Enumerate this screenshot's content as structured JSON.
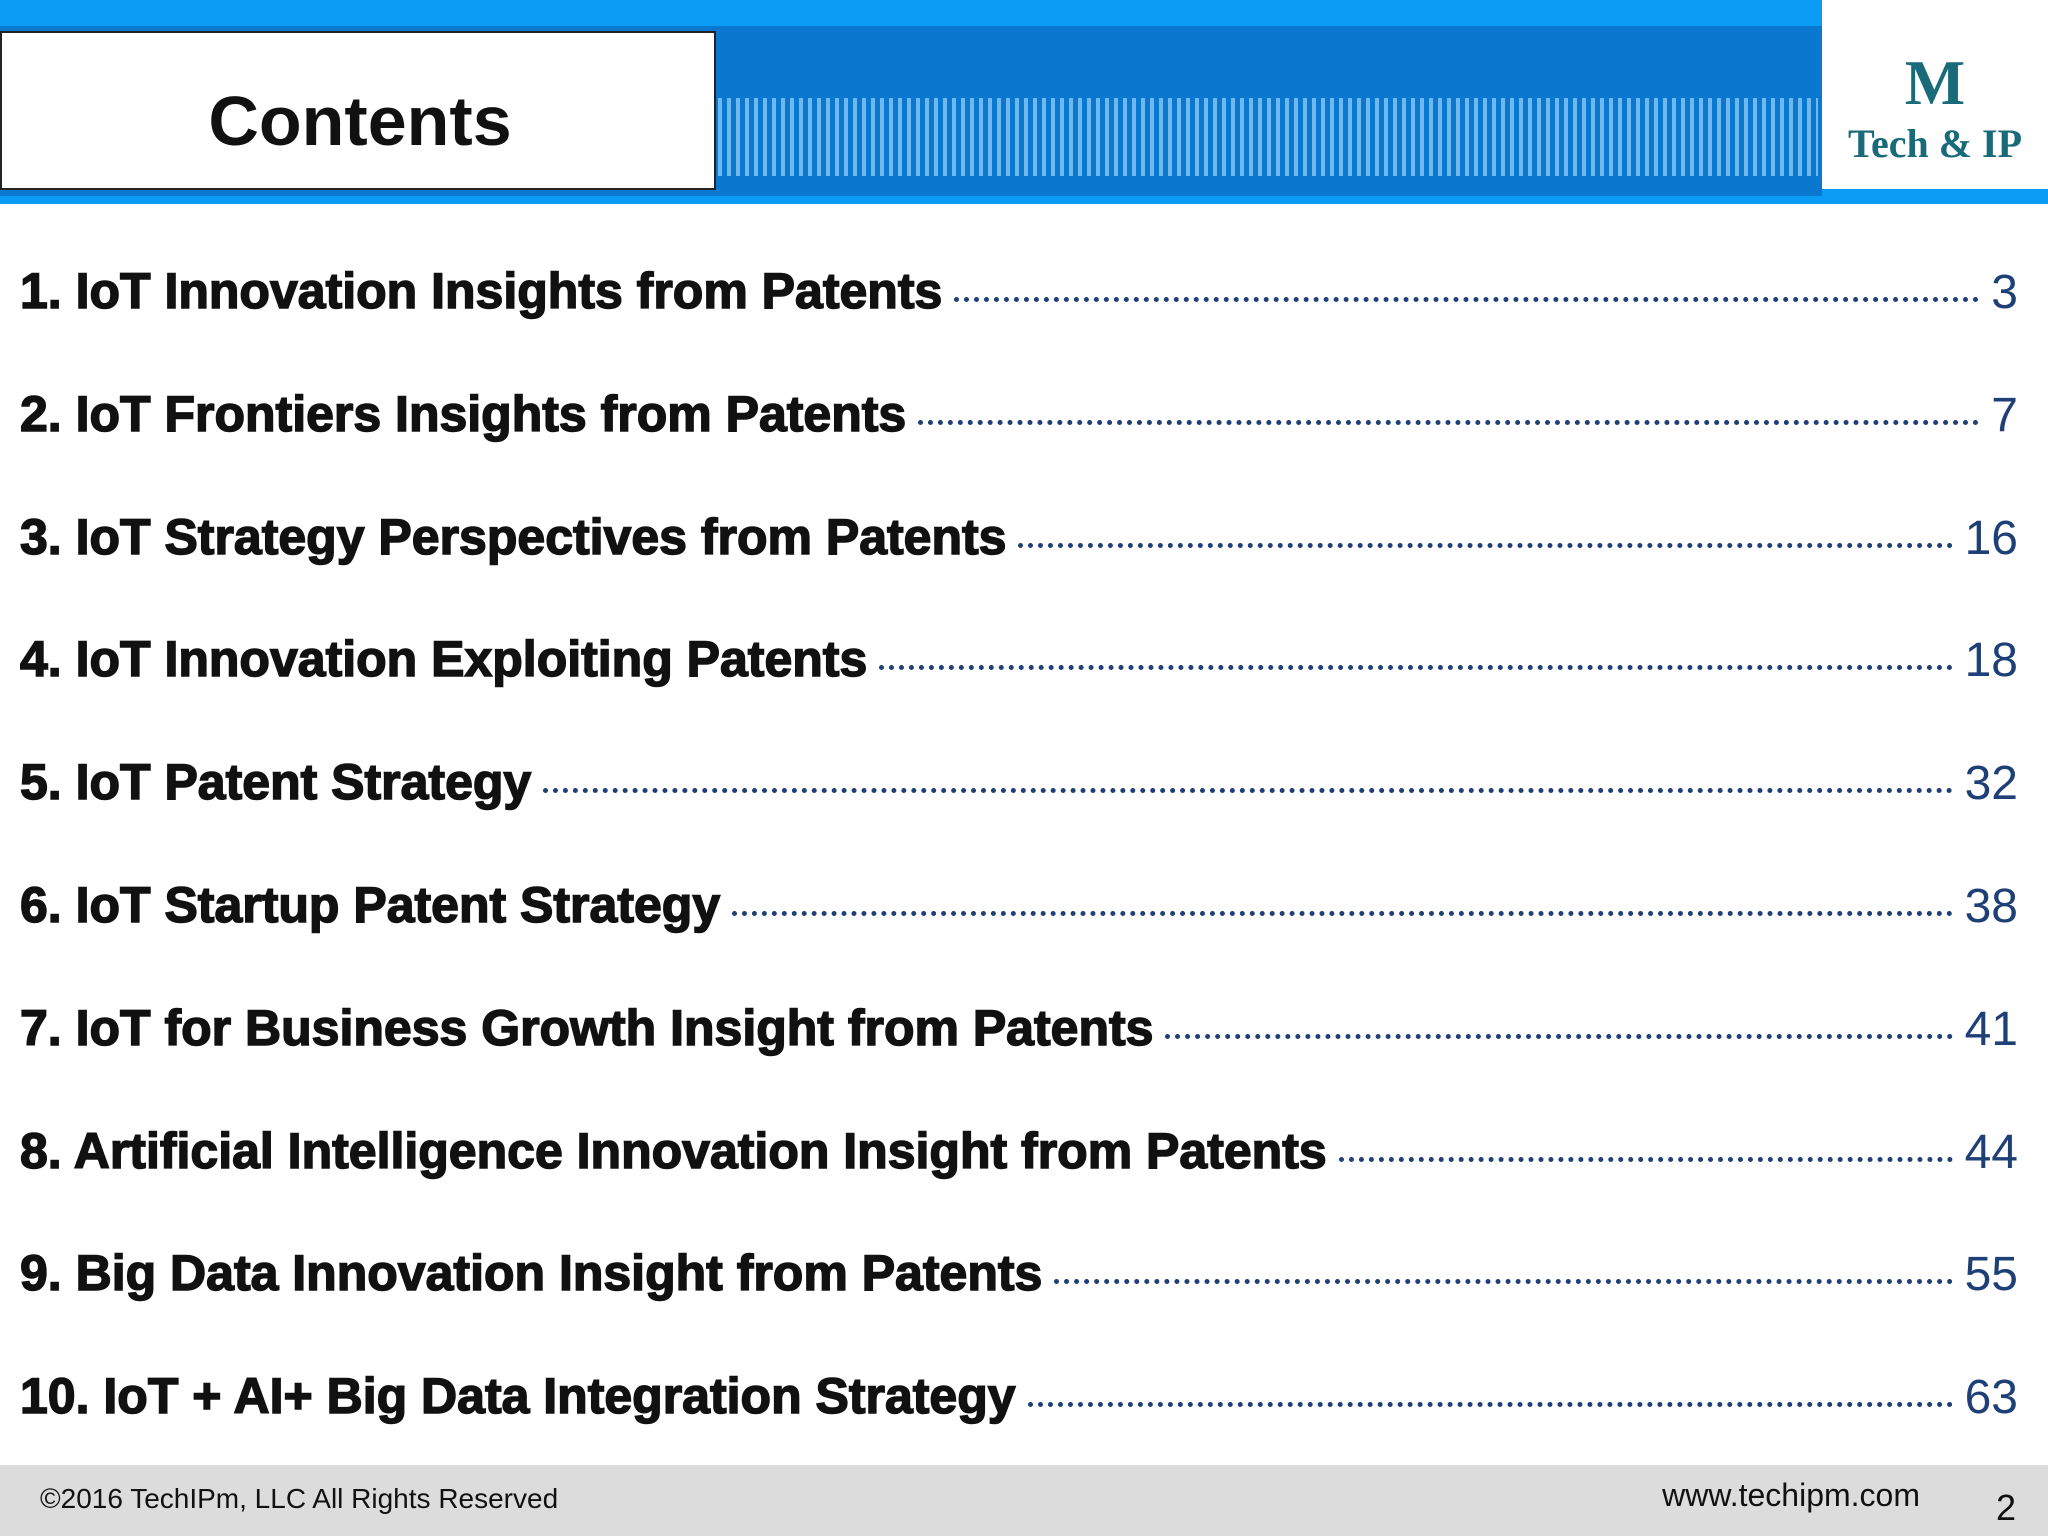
{
  "header": {
    "title": "Contents",
    "logo": {
      "mark": "M",
      "text": "Tech & IP"
    }
  },
  "entries": [
    {
      "label": "1. IoT Innovation Insights from Patents",
      "page": "3"
    },
    {
      "label": "2. IoT Frontiers Insights from Patents",
      "page": "7"
    },
    {
      "label": "3. IoT Strategy Perspectives from Patents",
      "page": "16"
    },
    {
      "label": "4. IoT Innovation Exploiting Patents",
      "page": "18"
    },
    {
      "label": "5. IoT Patent Strategy",
      "page": "32"
    },
    {
      "label": "6. IoT Startup Patent Strategy",
      "page": "38"
    },
    {
      "label": "7. IoT for Business Growth Insight from Patents",
      "page": "41"
    },
    {
      "label": "8. Artificial Intelligence Innovation Insight from Patents",
      "page": "44"
    },
    {
      "label": "9. Big Data Innovation Insight from Patents",
      "page": "55"
    },
    {
      "label": "10. IoT + AI+ Big Data Integration Strategy",
      "page": "63"
    }
  ],
  "footer": {
    "copyright": "©2016 TechIPm, LLC All Rights Reserved",
    "url": "www.techipm.com",
    "slide_number": "2"
  }
}
